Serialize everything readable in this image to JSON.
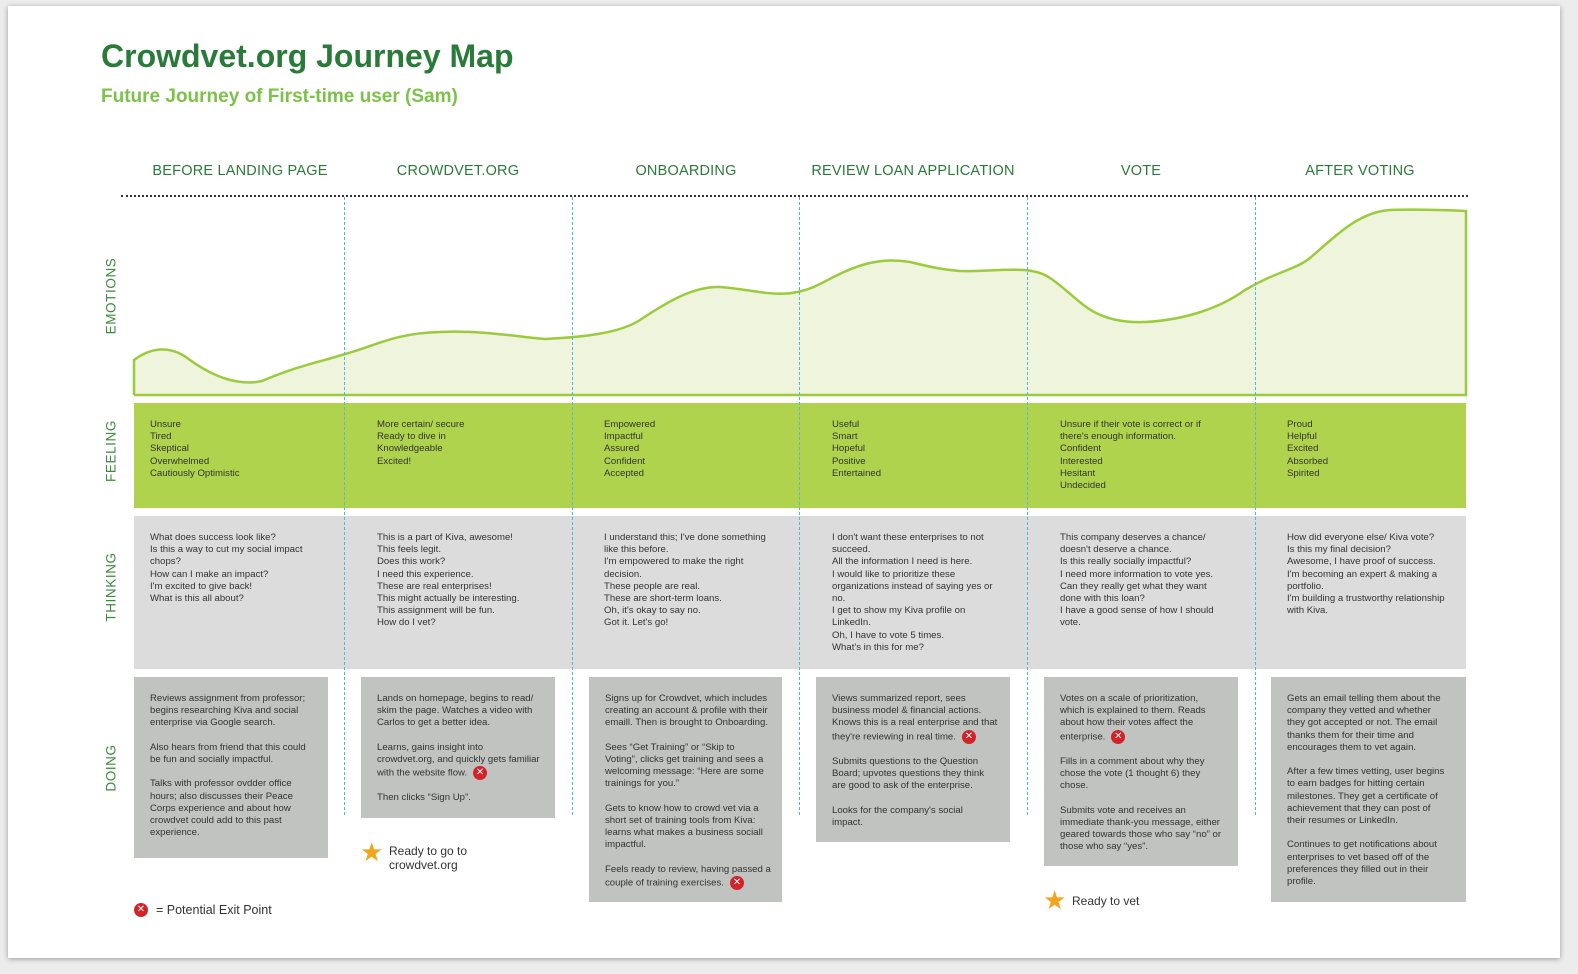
{
  "title": "Crowdvet.org Journey Map",
  "subtitle": "Future Journey of First-time user (Sam)",
  "phases": [
    "BEFORE LANDING PAGE",
    "CROWDVET.ORG",
    "ONBOARDING",
    "REVIEW LOAN APPLICATION",
    "VOTE",
    "AFTER VOTING"
  ],
  "row_labels": {
    "emotions": "EMOTIONS",
    "feeling": "FEELING",
    "thinking": "THINKING",
    "doing": "DOING"
  },
  "colors": {
    "title": "#2a7a3a",
    "subtitle": "#7cc24a",
    "emotion_line": "#9bcb3c",
    "emotion_fill": "#eef5dc",
    "feeling_band": "#b0d34e",
    "thinking_band": "#dcdcdc",
    "doing_box": "#c0c3bf",
    "divider": "#4fb7e3",
    "exit": "#d2232a",
    "star": "#f2a51c"
  },
  "feeling": [
    [
      "Unsure",
      "Tired",
      "Skeptical",
      "Overwhelmed",
      "Cautiously Optimistic"
    ],
    [
      "More certain/ secure",
      "Ready to dive in",
      "Knowledgeable",
      "Excited!"
    ],
    [
      "Empowered",
      "Impactful",
      "Assured",
      "Confident",
      "Accepted"
    ],
    [
      "Useful",
      "Smart",
      "Hopeful",
      "Positive",
      "Entertained"
    ],
    [
      "Unsure if their vote is correct or if",
      "there's enough information.",
      "Confident",
      "Interested",
      "Hesitant",
      "Undecided"
    ],
    [
      "Proud",
      "Helpful",
      "Excited",
      "Absorbed",
      "Spirited"
    ]
  ],
  "thinking": [
    [
      "What does success look like?",
      "Is this a way to cut my social impact",
      "chops?",
      "How can I make an impact?",
      "I'm excited to give back!",
      "What is this all about?"
    ],
    [
      "This is a part of Kiva, awesome!",
      "This feels legit.",
      "Does this work?",
      "I need this experience.",
      "These are real enterprises!",
      "This might actually be interesting.",
      "This assignment will be fun.",
      "How do I vet?"
    ],
    [
      "I understand this; I've done something",
      "like this before.",
      "I'm empowered to make the right",
      "decision.",
      "These people are real.",
      "These are short-term loans.",
      "Oh, it's okay to say no.",
      "Got it. Let's go!"
    ],
    [
      "I don't want these enterprises to not",
      "succeed.",
      "All the information I need is here.",
      "I would like to prioritize these",
      "organizations instead of saying yes or",
      "no.",
      "I get to show my Kiva profile on",
      "LinkedIn.",
      "Oh, I have to vote 5 times.",
      "What's in this for me?"
    ],
    [
      "This company deserves a chance/",
      "doesn't deserve a chance.",
      "Is this really socially impactful?",
      "I need more information to vote yes.",
      "Can they really get what they want",
      "done with this loan?",
      "I have a good sense of how I should",
      "vote."
    ],
    [
      "How did everyone else/ Kiva vote?",
      "Is this my final decision?",
      "Awesome, I have proof of success.",
      "I'm becoming an expert & making a",
      "portfolio.",
      "I'm building a trustworthy relationship",
      "with Kiva."
    ]
  ],
  "doing": [
    [
      [
        "Reviews assignment from professor;",
        "begins researching Kiva and social",
        "enterprise via Google search."
      ],
      [
        "Also hears from friend that this could",
        "be fun and socially impactful."
      ],
      [
        "Talks with professor ovdder office",
        "hours; also discusses their Peace",
        "Corps experience and about how",
        "crowdvet could add to this past",
        "experience."
      ]
    ],
    [
      [
        "Lands on homepage, begins to read/",
        "skim the page. Watches a video with",
        "Carlos to get a better idea."
      ],
      [
        "Learns, gains insight into",
        "crowdvet.org, and quickly gets familiar",
        "with the website flow."
      ],
      [
        "Then clicks “Sign Up”."
      ]
    ],
    [
      [
        "Signs up for Crowdvet, which includes",
        "creating an account & profile with their",
        "emaill. Then is brought to Onboarding."
      ],
      [
        "Sees “Get Training” or “Skip to",
        "Voting”, clicks get training and sees a",
        "welcoming message: “Here are some",
        "trainings for you.”"
      ],
      [
        "Gets to know how to crowd vet via a",
        "short set of training tools from Kiva:",
        "learns what makes a business sociall",
        "impactful."
      ],
      [
        "Feels ready to review, having passed a",
        "couple of training exercises."
      ]
    ],
    [
      [
        "Views summarized report, sees",
        "business model & financial actions.",
        "Knows this is a real enterprise and that",
        "they're reviewing in real time."
      ],
      [
        "Submits questions to the Question",
        "Board; upvotes questions they think",
        "are good to ask of the enterprise."
      ],
      [
        "Looks for the company's social",
        "impact."
      ]
    ],
    [
      [
        "Votes on a scale of prioritization,",
        "which is explained to them. Reads",
        "about how their votes affect the",
        "enterprise."
      ],
      [
        "Fills in a comment about why they",
        "chose the vote (1 thought 6) they",
        "chose."
      ],
      [
        "Submits vote and receives an",
        "immediate thank-you message, either",
        "geared towards those who say “no” or",
        "those who say “yes”."
      ]
    ],
    [
      [
        "Gets an email telling them about the",
        "company they vetted and whether",
        "they got accepted or not. The email",
        "thanks them for their time and",
        "encourages them to vet again."
      ],
      [
        "After a few times vetting, user begins",
        "to earn badges for hitting certain",
        "milestones. They get a certificate of",
        "achievement that they can post of",
        "their resumes or LinkedIn."
      ],
      [
        "Continues to get notifications about",
        "enterprises to vet based off of the",
        "preferences they filled out in their",
        "profile."
      ]
    ]
  ],
  "notes": {
    "crowdvet_ready": [
      "Ready to go to",
      "crowdvet.org"
    ],
    "ready_to_vet": "Ready to vet",
    "legend_exit": "= Potential Exit Point"
  },
  "icons": {
    "exit": "close-circle-icon",
    "milestone": "star-icon"
  }
}
